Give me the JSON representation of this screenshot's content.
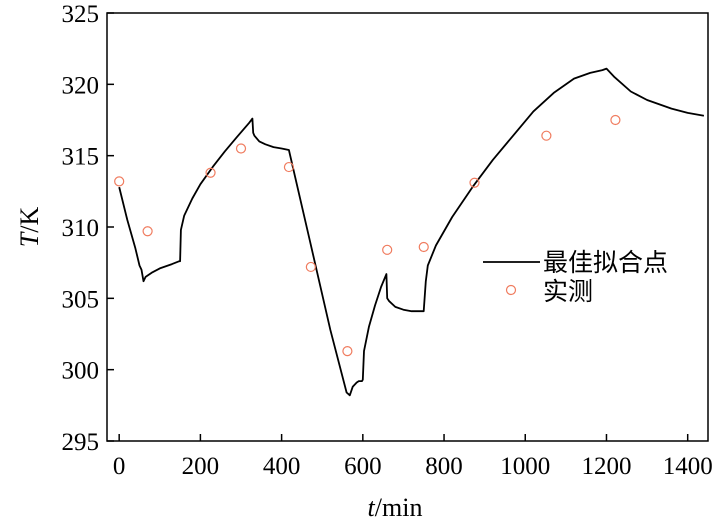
{
  "chart_data": {
    "type": "line",
    "title": "",
    "xlabel_var": "t",
    "xlabel_unit": "/min",
    "ylabel_var": "T",
    "ylabel_unit": "/K",
    "xlim": [
      -30,
      1450
    ],
    "ylim": [
      295,
      325
    ],
    "xticks": [
      0,
      200,
      400,
      600,
      800,
      1000,
      1200,
      1400
    ],
    "yticks": [
      295,
      300,
      305,
      310,
      315,
      320,
      325
    ],
    "legend_position": "right",
    "series": [
      {
        "name": "最佳拟合点",
        "style": "line",
        "color": "#000000",
        "x": [
          0,
          20,
          40,
          50,
          55,
          60,
          65,
          80,
          100,
          130,
          148,
          150,
          152,
          160,
          180,
          200,
          230,
          260,
          290,
          320,
          328,
          330,
          333,
          345,
          360,
          380,
          400,
          418,
          470,
          520,
          560,
          568,
          575,
          585,
          590,
          598,
          600,
          603,
          615,
          630,
          645,
          658,
          660,
          665,
          680,
          700,
          720,
          740,
          750,
          755,
          760,
          780,
          820,
          870,
          920,
          970,
          1020,
          1070,
          1120,
          1160,
          1190,
          1200,
          1220,
          1260,
          1300,
          1360,
          1400,
          1440
        ],
        "y": [
          312.8,
          310.5,
          308.5,
          307.3,
          307.0,
          306.2,
          306.5,
          306.8,
          307.1,
          307.4,
          307.6,
          307.6,
          309.8,
          310.8,
          312.0,
          313.0,
          314.2,
          315.3,
          316.3,
          317.3,
          317.6,
          316.6,
          316.4,
          316.0,
          315.8,
          315.6,
          315.5,
          315.4,
          309.0,
          302.8,
          298.4,
          298.2,
          298.8,
          299.1,
          299.2,
          299.2,
          299.3,
          301.3,
          303.0,
          304.5,
          305.8,
          306.7,
          305.0,
          304.8,
          304.4,
          304.2,
          304.1,
          304.1,
          304.1,
          306.2,
          307.3,
          308.7,
          310.7,
          312.8,
          314.7,
          316.4,
          318.1,
          319.4,
          320.4,
          320.8,
          321.0,
          321.1,
          320.5,
          319.5,
          318.9,
          318.3,
          318.0,
          317.8
        ]
      },
      {
        "name": "实测",
        "style": "scatter",
        "color": "#f07c5f",
        "x": [
          0,
          70,
          225,
          300,
          418,
          472,
          562,
          660,
          750,
          875,
          1052,
          1222
        ],
        "y": [
          313.2,
          309.7,
          313.8,
          315.5,
          314.2,
          307.2,
          301.3,
          308.4,
          308.6,
          313.1,
          316.4,
          317.5
        ]
      }
    ]
  }
}
